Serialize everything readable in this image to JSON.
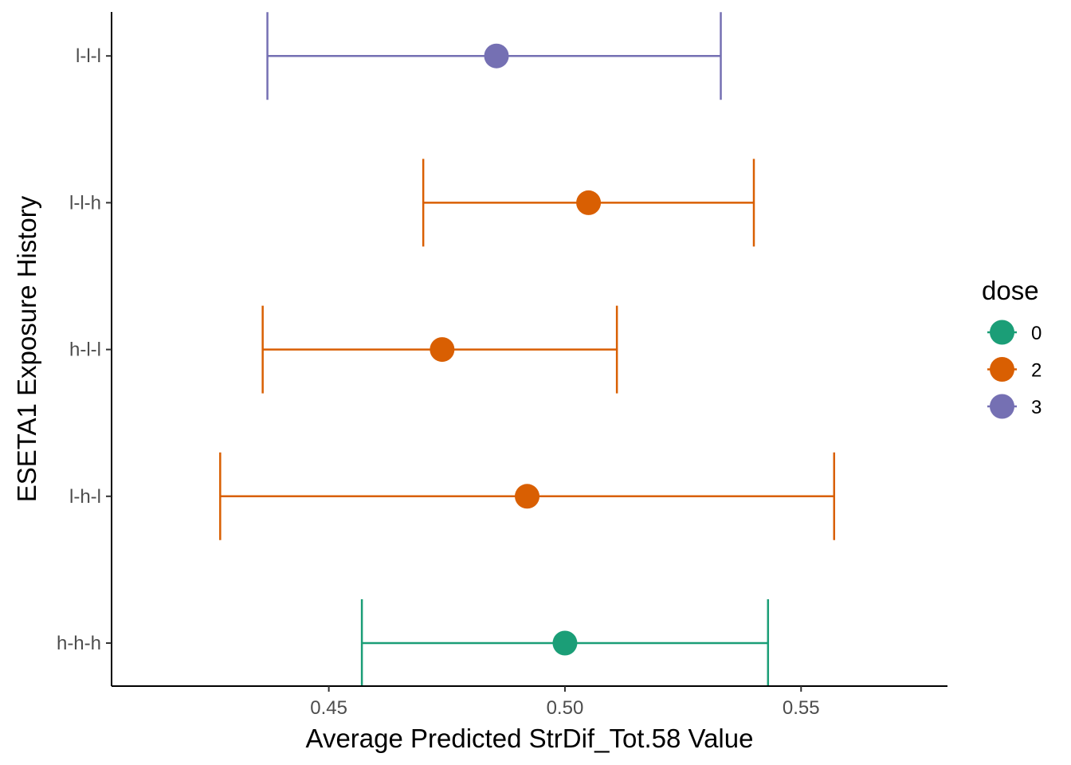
{
  "chart_data": {
    "type": "errorbar",
    "xlabel": "Average Predicted StrDif_Tot.58 Value",
    "ylabel": "ESETA1 Exposure History",
    "xlim": [
      0.404,
      0.581
    ],
    "x_ticks": [
      "0.45",
      "0.50",
      "0.55"
    ],
    "x_tick_values": [
      0.45,
      0.5,
      0.55
    ],
    "categories": [
      "h-h-h",
      "l-h-l",
      "h-l-l",
      "l-l-h",
      "l-l-l"
    ],
    "points": [
      {
        "category": "h-h-h",
        "estimate": 0.5,
        "lower": 0.457,
        "upper": 0.543,
        "dose": "0"
      },
      {
        "category": "l-h-l",
        "estimate": 0.492,
        "lower": 0.427,
        "upper": 0.557,
        "dose": "2"
      },
      {
        "category": "h-l-l",
        "estimate": 0.474,
        "lower": 0.436,
        "upper": 0.511,
        "dose": "2"
      },
      {
        "category": "l-l-h",
        "estimate": 0.505,
        "lower": 0.47,
        "upper": 0.54,
        "dose": "2"
      },
      {
        "category": "l-l-l",
        "estimate": 0.4855,
        "lower": 0.437,
        "upper": 0.533,
        "dose": "3"
      }
    ],
    "legend": {
      "title": "dose",
      "position": "right",
      "entries": [
        {
          "label": "0",
          "color": "#1b9e77"
        },
        {
          "label": "2",
          "color": "#d95f02"
        },
        {
          "label": "3",
          "color": "#7570b3"
        }
      ]
    },
    "grid": false
  }
}
